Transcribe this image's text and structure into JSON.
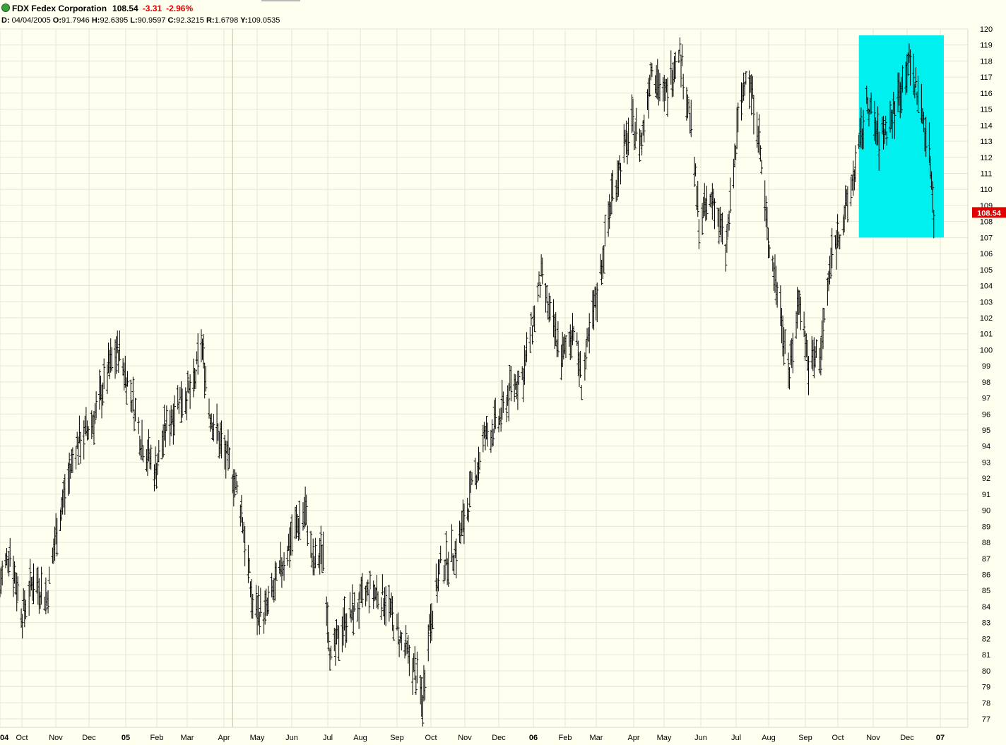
{
  "header": {
    "symbol": "FDX",
    "name": "Fedex Corporation",
    "last": "108.54",
    "change": "-3.31",
    "change_pct": "-2.96%",
    "status_color": "#3aa23a",
    "ohlc_line": {
      "date_label": "D:",
      "date": "04/04/2005",
      "o_label": "O:",
      "o": "91.7946",
      "h_label": "H:",
      "h": "92.6395",
      "l_label": "L:",
      "l": "90.9597",
      "c_label": "C:",
      "c": "92.3215",
      "r_label": "R:",
      "r": "1.6798",
      "y_label": "Y:",
      "y": "109.0535"
    }
  },
  "colors": {
    "background": "#fffff0",
    "grid": "#e6e6d6",
    "bars": "#000000",
    "highlight": "#00f0f0",
    "last_price_label": "#e00000",
    "cursor_line": "#c8c0a8"
  },
  "chart_data": {
    "type": "ohlc-bar",
    "title": "FDX Fedex Corporation",
    "ylim": [
      77,
      120
    ],
    "y_ticks": [
      77,
      78,
      79,
      80,
      81,
      82,
      83,
      84,
      85,
      86,
      87,
      88,
      89,
      90,
      91,
      92,
      93,
      94,
      95,
      96,
      97,
      98,
      99,
      100,
      101,
      102,
      103,
      104,
      105,
      106,
      107,
      108,
      109,
      110,
      111,
      112,
      113,
      114,
      115,
      116,
      117,
      118,
      119,
      120
    ],
    "x_tick_labels": [
      "04",
      "Oct",
      "Nov",
      "Dec",
      "05",
      "Feb",
      "Mar",
      "Apr",
      "May",
      "Jun",
      "Jul",
      "Aug",
      "Sep",
      "Oct",
      "Nov",
      "Dec",
      "06",
      "Feb",
      "Mar",
      "Apr",
      "May",
      "Jun",
      "Jul",
      "Aug",
      "Sep",
      "Oct",
      "Nov",
      "Dec",
      "07"
    ],
    "x_tick_bold": [
      "04",
      "05",
      "06",
      "07"
    ],
    "x_range": [
      "2004-09-08",
      "2006-12-31"
    ],
    "last_price": 108.54,
    "highlight_box": {
      "x_start": "2006-10-16",
      "x_end": "2006-12-31",
      "y_low": 107.0,
      "y_high": 119.6
    },
    "cursor_date": "2005-04-04",
    "price_path": [
      [
        "2004-09-08",
        85.5
      ],
      [
        "2004-09-17",
        87.5
      ],
      [
        "2004-09-28",
        83.5
      ],
      [
        "2004-10-08",
        85.8
      ],
      [
        "2004-10-20",
        84.5
      ],
      [
        "2004-10-29",
        89.0
      ],
      [
        "2004-11-15",
        94.0
      ],
      [
        "2004-11-30",
        95.5
      ],
      [
        "2004-12-15",
        99.0
      ],
      [
        "2004-12-23",
        100.0
      ],
      [
        "2005-01-04",
        97.0
      ],
      [
        "2005-01-12",
        94.5
      ],
      [
        "2005-01-25",
        92.5
      ],
      [
        "2005-02-03",
        95.0
      ],
      [
        "2005-02-15",
        97.0
      ],
      [
        "2005-02-28",
        97.5
      ],
      [
        "2005-03-07",
        100.5
      ],
      [
        "2005-03-15",
        96.0
      ],
      [
        "2005-03-28",
        93.5
      ],
      [
        "2005-04-04",
        92.3
      ],
      [
        "2005-04-12",
        90.0
      ],
      [
        "2005-04-22",
        84.0
      ],
      [
        "2005-05-03",
        83.5
      ],
      [
        "2005-05-16",
        86.0
      ],
      [
        "2005-05-27",
        88.5
      ],
      [
        "2005-06-08",
        90.0
      ],
      [
        "2005-06-15",
        86.5
      ],
      [
        "2005-06-24",
        87.5
      ],
      [
        "2005-07-01",
        80.5
      ],
      [
        "2005-07-12",
        83.0
      ],
      [
        "2005-07-25",
        84.0
      ],
      [
        "2005-08-05",
        85.0
      ],
      [
        "2005-08-19",
        84.5
      ],
      [
        "2005-08-31",
        82.0
      ],
      [
        "2005-09-14",
        80.0
      ],
      [
        "2005-09-21",
        78.0
      ],
      [
        "2005-09-26",
        82.5
      ],
      [
        "2005-10-07",
        86.5
      ],
      [
        "2005-10-21",
        87.5
      ],
      [
        "2005-11-03",
        91.0
      ],
      [
        "2005-11-15",
        94.5
      ],
      [
        "2005-11-28",
        95.5
      ],
      [
        "2005-12-08",
        97.5
      ],
      [
        "2005-12-20",
        98.5
      ],
      [
        "2006-01-05",
        104.5
      ],
      [
        "2006-01-13",
        102.0
      ],
      [
        "2006-01-24",
        99.5
      ],
      [
        "2006-02-03",
        101.5
      ],
      [
        "2006-02-10",
        98.0
      ],
      [
        "2006-02-24",
        103.5
      ],
      [
        "2006-03-10",
        110.0
      ],
      [
        "2006-03-27",
        114.0
      ],
      [
        "2006-04-05",
        113.0
      ],
      [
        "2006-04-14",
        118.0
      ],
      [
        "2006-04-25",
        115.5
      ],
      [
        "2006-05-08",
        119.0
      ],
      [
        "2006-05-18",
        114.5
      ],
      [
        "2006-05-26",
        108.0
      ],
      [
        "2006-06-08",
        109.5
      ],
      [
        "2006-06-19",
        106.0
      ],
      [
        "2006-06-30",
        114.0
      ],
      [
        "2006-07-07",
        117.5
      ],
      [
        "2006-07-17",
        114.5
      ],
      [
        "2006-07-26",
        107.5
      ],
      [
        "2006-08-07",
        102.5
      ],
      [
        "2006-08-15",
        98.5
      ],
      [
        "2006-08-24",
        103.5
      ],
      [
        "2006-09-01",
        99.0
      ],
      [
        "2006-09-12",
        100.0
      ],
      [
        "2006-09-22",
        106.0
      ],
      [
        "2006-10-06",
        109.0
      ],
      [
        "2006-10-16",
        112.5
      ],
      [
        "2006-10-24",
        115.5
      ],
      [
        "2006-11-03",
        113.0
      ],
      [
        "2006-11-15",
        114.5
      ],
      [
        "2006-11-29",
        118.0
      ],
      [
        "2006-12-08",
        116.0
      ],
      [
        "2006-12-15",
        113.5
      ],
      [
        "2006-12-19",
        111.8
      ],
      [
        "2006-12-22",
        108.54
      ]
    ]
  }
}
